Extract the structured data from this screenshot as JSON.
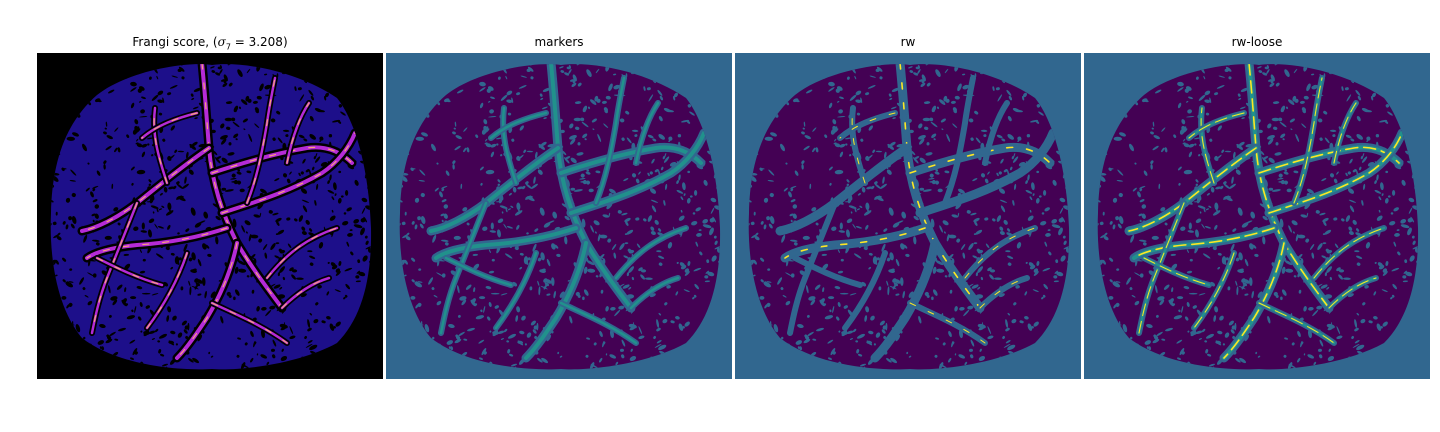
{
  "panels": [
    {
      "id": "frangi",
      "title_prefix": "Frangi score, (",
      "title_sigma": "σ",
      "title_sub": "7",
      "title_suffix": " = 3.208)",
      "background": "#000000",
      "tissue": "#1d0f8a",
      "texture": "#000000",
      "vessel": "#b52bd6",
      "highlight": "#f6a37a"
    },
    {
      "id": "markers",
      "title": "markers",
      "background": "#31678f",
      "tissue": "#440154",
      "texture": "#31678f",
      "vessel": "#21918c",
      "outline": "#31678f"
    },
    {
      "id": "rw",
      "title": "rw",
      "background": "#31678f",
      "tissue": "#440154",
      "texture": "#31678f",
      "vessel": "#31678f",
      "highlight": "#fde725"
    },
    {
      "id": "rw-loose",
      "title": "rw-loose",
      "background": "#31678f",
      "tissue": "#440154",
      "texture": "#31678f",
      "vessel": "#21918c",
      "highlight": "#fde725"
    }
  ]
}
